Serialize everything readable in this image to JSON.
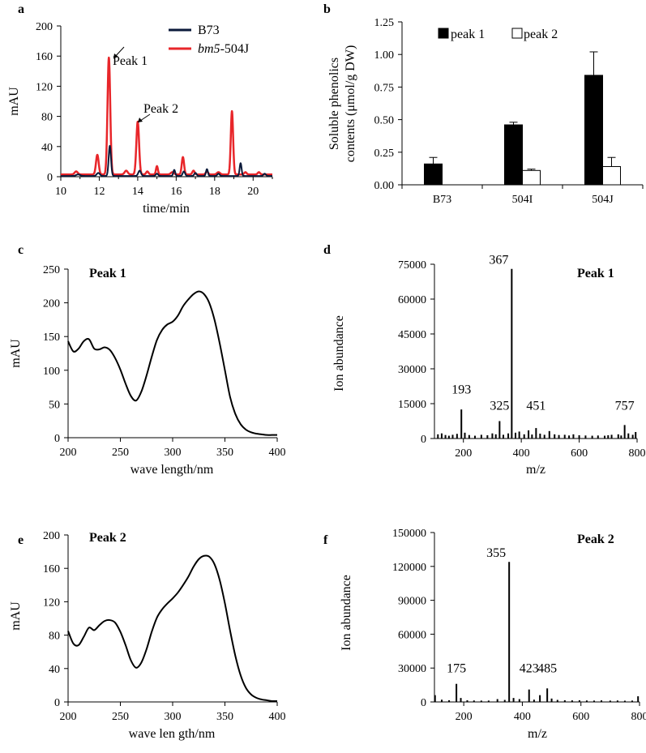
{
  "figure": {
    "panel_labels": [
      "a",
      "b",
      "c",
      "d",
      "e",
      "f"
    ]
  },
  "chart_data": [
    {
      "id": "a",
      "type": "line",
      "title": "",
      "xlabel": "time/min",
      "ylabel": "mAU",
      "xlim": [
        10,
        21
      ],
      "ylim": [
        0,
        200
      ],
      "xticks": [
        10,
        12,
        14,
        16,
        18,
        20
      ],
      "yticks": [
        0,
        40,
        80,
        120,
        160,
        200
      ],
      "legend": {
        "position": "top-right",
        "entries": [
          {
            "name": "B73",
            "color": "#0b1a3a"
          },
          {
            "pre": "",
            "italic": "bm5",
            "post": "-504J",
            "color": "#e8262a"
          }
        ]
      },
      "annotations": [
        {
          "text": "Peak 1",
          "x": 12.5,
          "y": 157
        },
        {
          "text": "Peak 2",
          "x": 14.0,
          "y": 73
        }
      ],
      "series": [
        {
          "name": "bm5-504J",
          "color": "#e8262a",
          "baseline": 3,
          "peaks": [
            [
              10.8,
              4,
              0.08
            ],
            [
              11.9,
              26,
              0.07
            ],
            [
              12.5,
              155,
              0.07
            ],
            [
              13.4,
              5,
              0.08
            ],
            [
              14.0,
              70,
              0.07
            ],
            [
              14.5,
              4,
              0.06
            ],
            [
              15.0,
              11,
              0.05
            ],
            [
              15.8,
              3,
              0.08
            ],
            [
              16.35,
              23,
              0.06
            ],
            [
              16.9,
              5,
              0.06
            ],
            [
              17.6,
              4,
              0.06
            ],
            [
              18.2,
              3,
              0.08
            ],
            [
              18.9,
              84,
              0.06
            ],
            [
              19.6,
              3,
              0.06
            ],
            [
              20.3,
              3,
              0.06
            ]
          ]
        },
        {
          "name": "B73",
          "color": "#0b1a3a",
          "baseline": 1,
          "peaks": [
            [
              10.9,
              2,
              0.1
            ],
            [
              11.95,
              4,
              0.08
            ],
            [
              12.55,
              40,
              0.06
            ],
            [
              14.1,
              7,
              0.07
            ],
            [
              15.0,
              3,
              0.06
            ],
            [
              15.9,
              8,
              0.05
            ],
            [
              16.4,
              6,
              0.06
            ],
            [
              17.0,
              4,
              0.06
            ],
            [
              17.6,
              9,
              0.05
            ],
            [
              18.2,
              3,
              0.06
            ],
            [
              19.35,
              17,
              0.05
            ],
            [
              20.6,
              3,
              0.06
            ]
          ]
        }
      ]
    },
    {
      "id": "b",
      "type": "bar",
      "xlabel": "",
      "ylabel": "Soluble phenolics",
      "ylabel2": "contents (μmol/g DW)",
      "ylim": [
        0,
        1.25
      ],
      "yticks": [
        "0.00",
        "0.25",
        "0.50",
        "0.75",
        "1.00",
        "1.25"
      ],
      "categories": [
        "B73",
        "504I",
        "504J"
      ],
      "legend": {
        "position": "top",
        "entries": [
          {
            "name": "peak 1",
            "fill": "#000000"
          },
          {
            "name": "peak 2",
            "fill": "#ffffff"
          }
        ]
      },
      "series": [
        {
          "name": "peak 1",
          "values": [
            0.16,
            0.46,
            0.84
          ],
          "errors": [
            0.05,
            0.02,
            0.18
          ]
        },
        {
          "name": "peak 2",
          "values": [
            0,
            0.11,
            0.14
          ],
          "errors": [
            0,
            0.01,
            0.07
          ]
        }
      ]
    },
    {
      "id": "c",
      "type": "line",
      "title": "Peak 1",
      "xlabel": "wave length/nm",
      "ylabel": "mAU",
      "xlim": [
        200,
        400
      ],
      "ylim": [
        0,
        250
      ],
      "xticks": [
        200,
        250,
        300,
        350,
        400
      ],
      "yticks": [
        0,
        50,
        100,
        150,
        200,
        250
      ],
      "x": [
        200,
        205,
        210,
        215,
        220,
        225,
        230,
        235,
        240,
        245,
        250,
        255,
        260,
        265,
        270,
        275,
        280,
        285,
        290,
        295,
        300,
        305,
        310,
        315,
        320,
        325,
        330,
        335,
        340,
        345,
        350,
        355,
        360,
        365,
        370,
        375,
        380,
        385,
        390,
        395,
        400
      ],
      "y": [
        143,
        128,
        132,
        143,
        146,
        132,
        131,
        134,
        130,
        118,
        101,
        80,
        62,
        55,
        68,
        92,
        120,
        145,
        160,
        168,
        172,
        181,
        195,
        205,
        213,
        217,
        213,
        200,
        175,
        140,
        100,
        60,
        35,
        20,
        12,
        8,
        6,
        5,
        4,
        4,
        4
      ]
    },
    {
      "id": "d",
      "type": "bar",
      "title": "Peak 1",
      "xlabel": "m/z",
      "ylabel": "Ion abundance",
      "xlim": [
        100,
        800
      ],
      "ylim": [
        0,
        75000
      ],
      "xticks": [
        200,
        400,
        600,
        800
      ],
      "yticks": [
        0,
        15000,
        30000,
        45000,
        60000,
        75000
      ],
      "x": [
        112,
        125,
        138,
        150,
        163,
        178,
        193,
        205,
        220,
        240,
        262,
        283,
        300,
        312,
        325,
        338,
        355,
        367,
        380,
        393,
        410,
        425,
        437,
        451,
        465,
        480,
        497,
        515,
        530,
        550,
        565,
        580,
        600,
        622,
        645,
        665,
        688,
        700,
        712,
        735,
        745,
        757,
        770,
        785,
        795
      ],
      "y": [
        1800,
        2200,
        1500,
        1200,
        1600,
        2000,
        12500,
        2500,
        1500,
        1200,
        1600,
        1400,
        2200,
        1800,
        7500,
        1600,
        2200,
        73000,
        2500,
        3000,
        1800,
        3500,
        1700,
        4500,
        2100,
        1600,
        3200,
        1800,
        1500,
        1600,
        1300,
        1800,
        1400,
        1300,
        1200,
        1300,
        1200,
        1400,
        1600,
        1800,
        1300,
        5800,
        2200,
        1600,
        2800
      ],
      "labels": [
        {
          "text": "367",
          "x": 367,
          "y": 73000
        },
        {
          "text": "193",
          "x": 193,
          "y": 14500
        },
        {
          "text": "325",
          "x": 325,
          "y": 7500
        },
        {
          "text": "451",
          "x": 451,
          "y": 7500
        },
        {
          "text": "757",
          "x": 757,
          "y": 7500
        }
      ]
    },
    {
      "id": "e",
      "type": "line",
      "title": "Peak 2",
      "xlabel": "wave len gth/nm",
      "ylabel": "mAU",
      "xlim": [
        200,
        400
      ],
      "ylim": [
        0,
        200
      ],
      "xticks": [
        200,
        250,
        300,
        350,
        400
      ],
      "yticks": [
        0,
        40,
        80,
        120,
        160,
        200
      ],
      "x": [
        200,
        205,
        210,
        215,
        220,
        225,
        230,
        235,
        240,
        245,
        250,
        255,
        260,
        265,
        270,
        275,
        280,
        285,
        290,
        295,
        300,
        305,
        310,
        315,
        320,
        325,
        330,
        335,
        340,
        345,
        350,
        355,
        360,
        365,
        370,
        375,
        380,
        385,
        390,
        395,
        400
      ],
      "y": [
        85,
        70,
        68,
        78,
        89,
        86,
        92,
        97,
        98,
        95,
        84,
        68,
        50,
        41,
        47,
        63,
        84,
        101,
        111,
        118,
        124,
        131,
        140,
        150,
        162,
        171,
        175,
        174,
        165,
        146,
        118,
        85,
        55,
        32,
        17,
        9,
        5,
        3,
        2,
        1,
        1
      ]
    },
    {
      "id": "f",
      "type": "bar",
      "title": "Peak 2",
      "xlabel": "m/z",
      "ylabel": "Ion abundance",
      "xlim": [
        100,
        800
      ],
      "ylim": [
        0,
        150000
      ],
      "xticks": [
        200,
        400,
        600,
        800
      ],
      "yticks": [
        0,
        30000,
        60000,
        90000,
        120000,
        150000
      ],
      "x": [
        102,
        125,
        150,
        175,
        190,
        212,
        235,
        260,
        285,
        315,
        340,
        355,
        370,
        390,
        423,
        440,
        460,
        485,
        500,
        520,
        545,
        570,
        595,
        620,
        645,
        670,
        700,
        725,
        750,
        775,
        795
      ],
      "y": [
        6000,
        2000,
        1500,
        16000,
        3500,
        1500,
        1300,
        1200,
        1200,
        2500,
        1800,
        124000,
        3500,
        2500,
        11000,
        2000,
        6000,
        12000,
        3000,
        1800,
        1500,
        1400,
        1500,
        1300,
        1200,
        1400,
        1200,
        1300,
        1100,
        1200,
        5000
      ],
      "labels": [
        {
          "text": "355",
          "x": 355,
          "y": 124000
        },
        {
          "text": "175",
          "x": 175,
          "y": 16000
        },
        {
          "text": "423",
          "x": 423,
          "y": 16000
        },
        {
          "text": "485",
          "x": 485,
          "y": 16000
        }
      ]
    }
  ]
}
